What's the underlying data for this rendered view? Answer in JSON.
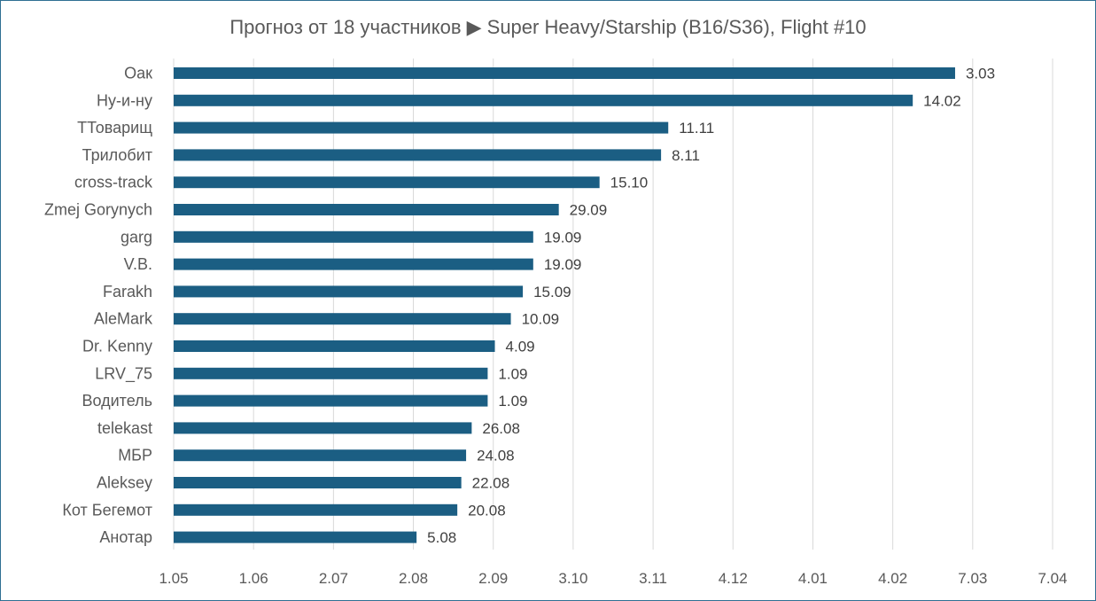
{
  "colors": {
    "bar": "#1b5e83",
    "grid": "#d9d9d9",
    "border": "#2f6f92"
  },
  "chart_data": {
    "type": "bar",
    "orientation": "horizontal",
    "title": "Прогноз от 18 участников ▶  Super Heavy/Starship (B16/S36), Flight #10",
    "categories": [
      "Оак",
      "Ну-и-ну",
      "ТТоварищ",
      "Трилобит",
      "cross-track",
      "Zmej Gorynych",
      "garg",
      "V.B.",
      "Farakh",
      "AleMark",
      "Dr. Kenny",
      "LRV_75",
      "Водитель",
      "telekast",
      "МБР",
      "Aleksey",
      "Кот Бегемот",
      "Анотар"
    ],
    "values": [
      9.78,
      9.25,
      6.19,
      6.1,
      5.33,
      4.82,
      4.5,
      4.5,
      4.37,
      4.22,
      4.02,
      3.93,
      3.93,
      3.73,
      3.66,
      3.6,
      3.55,
      3.04
    ],
    "data_labels": [
      "3.03",
      "14.02",
      "11.11",
      "8.11",
      "15.10",
      "29.09",
      "19.09",
      "19.09",
      "15.09",
      "10.09",
      "4.09",
      "1.09",
      "1.09",
      "26.08",
      "24.08",
      "22.08",
      "20.08",
      "5.08"
    ],
    "x_tick_labels": [
      "1.05",
      "1.06",
      "2.07",
      "2.08",
      "2.09",
      "3.10",
      "3.11",
      "4.12",
      "4.01",
      "4.02",
      "7.03",
      "7.04"
    ],
    "xlim": [
      0,
      11
    ],
    "grid": "vertical",
    "legend": "none"
  }
}
